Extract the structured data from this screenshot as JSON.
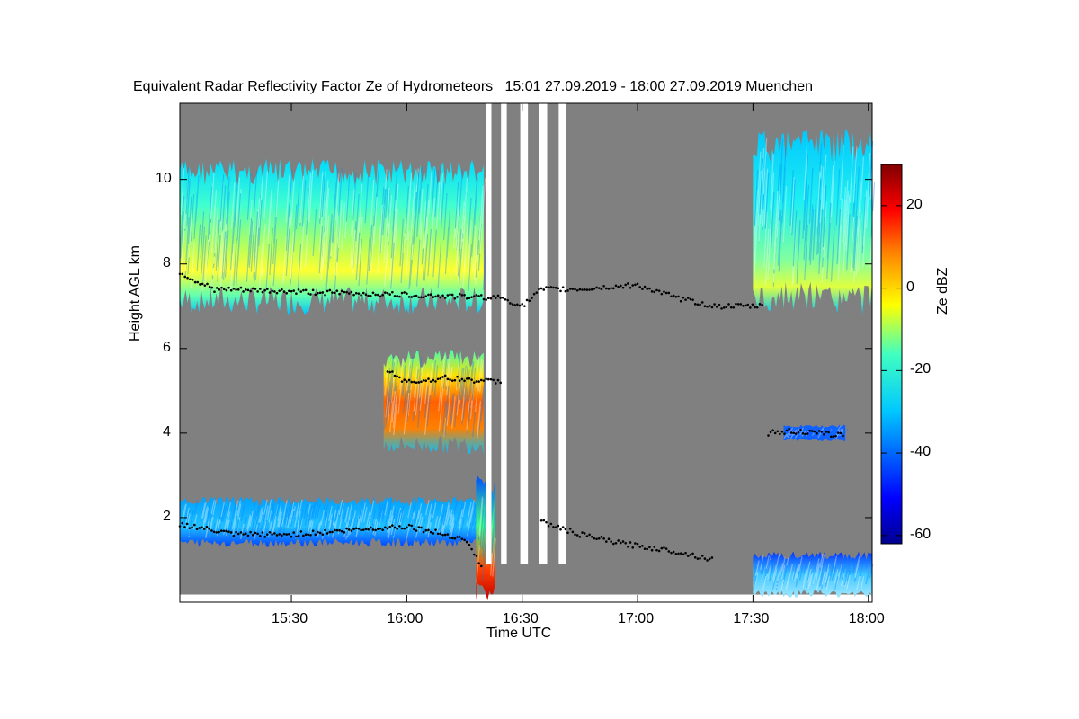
{
  "chart_data": {
    "type": "heatmap",
    "title": "Equivalent Radar Reflectivity Factor Ze of Hydrometeors   15:01 27.09.2019 - 18:00 27.09.2019 Muenchen",
    "xlabel": "Time UTC",
    "ylabel": "Height AGL km",
    "x_ticks": [
      "15:30",
      "16:00",
      "16:30",
      "17:00",
      "17:30",
      "18:00"
    ],
    "x_tick_minutes": [
      930,
      960,
      990,
      1020,
      1050,
      1080
    ],
    "xlim_minutes": [
      901,
      1081
    ],
    "y_ticks": [
      2,
      4,
      6,
      8,
      10
    ],
    "ylim": [
      0,
      11.8
    ],
    "colorbar": {
      "label": "Ze dBZ",
      "ticks": [
        20,
        0,
        -20,
        -40,
        -60
      ],
      "range": [
        -62,
        30
      ]
    },
    "background_color": "#808080",
    "gap_color": "#ffffff",
    "data_gaps_minutes": [
      [
        1010.0,
        1010.0
      ]
    ],
    "features": [
      {
        "name": "upper-cloud-left",
        "t_start": 901,
        "t_end": 980,
        "base_km": 6.8,
        "top_km": 10.5,
        "ze_core": -5
      },
      {
        "name": "mid-level-cloud",
        "t_start": 954,
        "t_end": 980,
        "base_km": 3.5,
        "top_km": 6.0,
        "ze_core": 15
      },
      {
        "name": "low-cloud-left",
        "t_start": 901,
        "t_end": 978,
        "base_km": 1.3,
        "top_km": 2.5,
        "ze_core": -30
      },
      {
        "name": "precipitation-column",
        "t_start": 978,
        "t_end": 983,
        "base_km": 0.0,
        "top_km": 3.0,
        "ze_core": 20
      },
      {
        "name": "upper-cloud-right",
        "t_start": 1050,
        "t_end": 1081,
        "base_km": 6.8,
        "top_km": 11.2,
        "ze_core": -12
      },
      {
        "name": "thin-layer-right",
        "t_start": 1058,
        "t_end": 1074,
        "base_km": 3.8,
        "top_km": 4.2,
        "ze_core": -38
      },
      {
        "name": "boundary-layer-clutter",
        "t_start": 1050,
        "t_end": 1081,
        "base_km": 0.1,
        "top_km": 1.2,
        "ze_core": -35
      }
    ],
    "blank_columns_minutes": [
      [
        980.5,
        982.0
      ],
      [
        984.5,
        986.0
      ],
      [
        989.5,
        991.5
      ],
      [
        994.5,
        996.5
      ],
      [
        999.5,
        1001.5
      ]
    ],
    "dotted_lines": [
      {
        "name": "upper-boundary",
        "points": [
          [
            901,
            7.8
          ],
          [
            905,
            7.6
          ],
          [
            910,
            7.4
          ],
          [
            985,
            7.2
          ],
          [
            990,
            7.0
          ],
          [
            995,
            7.4
          ],
          [
            1005,
            7.4
          ],
          [
            1020,
            7.5
          ],
          [
            1030,
            7.2
          ],
          [
            1040,
            7.0
          ],
          [
            1053,
            7.0
          ]
        ]
      },
      {
        "name": "mid-boundary",
        "points": [
          [
            955,
            5.5
          ],
          [
            960,
            5.2
          ],
          [
            970,
            5.3
          ],
          [
            985,
            5.2
          ]
        ]
      },
      {
        "name": "lower-boundary",
        "points": [
          [
            901,
            1.85
          ],
          [
            915,
            1.6
          ],
          [
            930,
            1.6
          ],
          [
            945,
            1.7
          ],
          [
            960,
            1.8
          ],
          [
            975,
            1.5
          ],
          [
            980,
            0.8
          ]
        ]
      },
      {
        "name": "lower-boundary-right",
        "points": [
          [
            995,
            1.9
          ],
          [
            1005,
            1.6
          ],
          [
            1015,
            1.4
          ],
          [
            1030,
            1.2
          ],
          [
            1040,
            1.0
          ]
        ]
      },
      {
        "name": "right-layer-line",
        "points": [
          [
            1054,
            4.0
          ],
          [
            1060,
            4.05
          ],
          [
            1066,
            4.0
          ],
          [
            1074,
            3.95
          ]
        ]
      }
    ]
  }
}
